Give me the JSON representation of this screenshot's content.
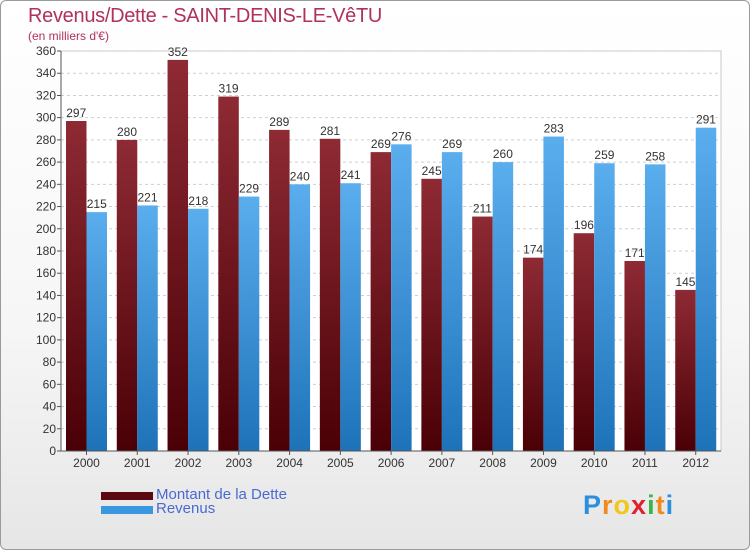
{
  "title": "Revenus/Dette - SAINT-DENIS-LE-VêTU",
  "subtitle": "(en milliers d'€)",
  "logo": {
    "letters": [
      {
        "ch": "P",
        "color": "#2b8fe0"
      },
      {
        "ch": "r",
        "color": "#f08a1c"
      },
      {
        "ch": "o",
        "color": "#f0c81c"
      },
      {
        "ch": "x",
        "color": "#e0202c"
      },
      {
        "ch": "i",
        "color": "#39b54a"
      },
      {
        "ch": "t",
        "color": "#f08a1c"
      },
      {
        "ch": "i",
        "color": "#2b8fe0"
      }
    ]
  },
  "chart_data": {
    "type": "bar",
    "title": "Revenus/Dette - SAINT-DENIS-LE-VêTU",
    "categories": [
      "2000",
      "2001",
      "2002",
      "2003",
      "2004",
      "2005",
      "2006",
      "2007",
      "2008",
      "2009",
      "2010",
      "2011",
      "2012"
    ],
    "series": [
      {
        "name": "Montant de la Dette",
        "color": "#7a1018",
        "values": [
          297,
          280,
          352,
          319,
          289,
          281,
          269,
          245,
          211,
          174,
          196,
          171,
          145
        ]
      },
      {
        "name": "Revenus",
        "color": "#3a98e0",
        "values": [
          215,
          221,
          218,
          229,
          240,
          241,
          276,
          269,
          260,
          283,
          259,
          258,
          291
        ]
      }
    ],
    "ylim": [
      0,
      360
    ],
    "yticks": [
      0,
      20,
      40,
      60,
      80,
      100,
      120,
      140,
      160,
      180,
      200,
      220,
      240,
      260,
      280,
      300,
      320,
      340,
      360
    ],
    "grid": true,
    "legend": "bottom-left"
  }
}
